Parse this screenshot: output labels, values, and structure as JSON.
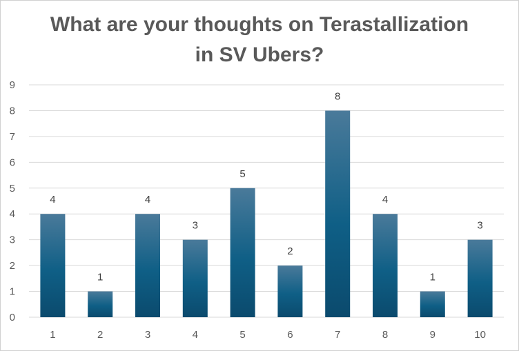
{
  "chart_data": {
    "type": "bar",
    "title_lines": [
      "What are your thoughts on Terastallization",
      "in SV Ubers?"
    ],
    "categories": [
      "1",
      "2",
      "3",
      "4",
      "5",
      "6",
      "7",
      "8",
      "9",
      "10"
    ],
    "values": [
      4,
      1,
      4,
      3,
      5,
      2,
      8,
      4,
      1,
      3
    ],
    "ylim": [
      0,
      9
    ],
    "yticks": [
      "0",
      "1",
      "2",
      "3",
      "4",
      "5",
      "6",
      "7",
      "8",
      "9"
    ],
    "grid": true,
    "legend": "none",
    "data_labels": true,
    "colors": {
      "bar_top": "#4a7a9a",
      "bar_mid": "#0f5f86",
      "bar_bottom": "#0b4a6d",
      "grid": "#d9d9d9",
      "text": "#595959"
    }
  }
}
